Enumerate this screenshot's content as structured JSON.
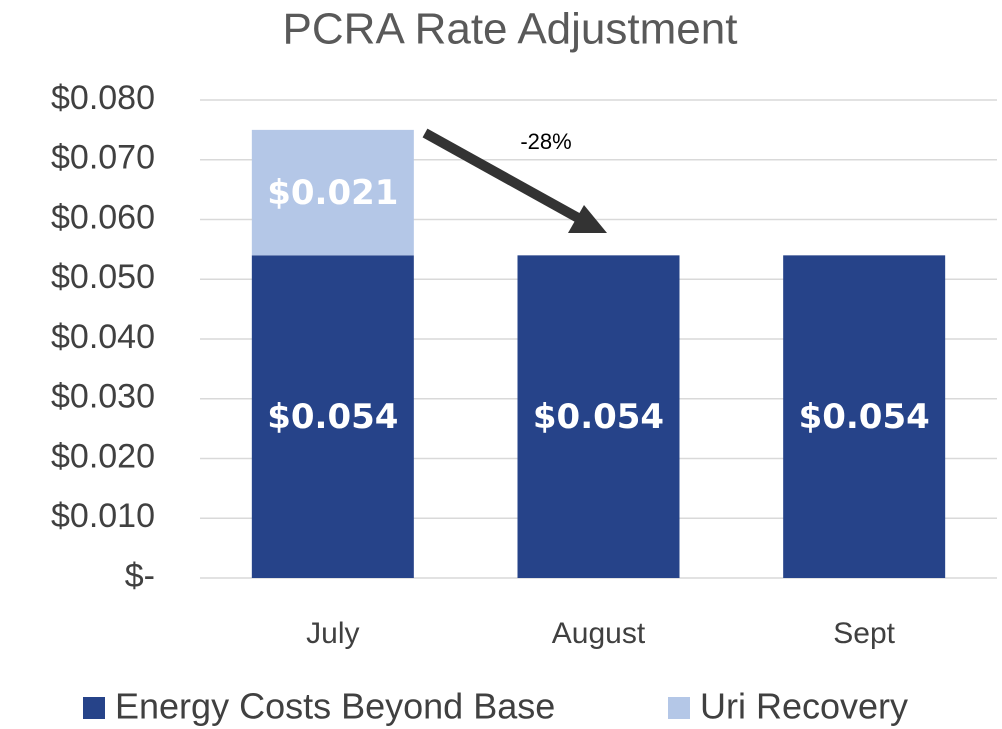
{
  "chart_data": {
    "type": "bar",
    "stacked": true,
    "title": "PCRA Rate Adjustment",
    "categories": [
      "July",
      "August",
      "Sept"
    ],
    "series": [
      {
        "name": "Energy Costs Beyond Base",
        "color": "#264389",
        "values": [
          0.054,
          0.054,
          0.054
        ],
        "value_labels": [
          "$0.054",
          "$0.054",
          "$0.054"
        ]
      },
      {
        "name": "Uri Recovery",
        "color": "#b4c7e7",
        "values": [
          0.021,
          null,
          null
        ],
        "value_labels": [
          "$0.021",
          null,
          null
        ]
      }
    ],
    "ylim": [
      0,
      0.08
    ],
    "yticks": [
      {
        "value": 0,
        "label": "$-"
      },
      {
        "value": 0.01,
        "label": "$0.010"
      },
      {
        "value": 0.02,
        "label": "$0.020"
      },
      {
        "value": 0.03,
        "label": "$0.030"
      },
      {
        "value": 0.04,
        "label": "$0.040"
      },
      {
        "value": 0.05,
        "label": "$0.050"
      },
      {
        "value": 0.06,
        "label": "$0.060"
      },
      {
        "value": 0.07,
        "label": "$0.070"
      },
      {
        "value": 0.08,
        "label": "$0.080"
      }
    ],
    "grid": true,
    "legend": "bottom",
    "annotations": [
      "-28%"
    ]
  }
}
